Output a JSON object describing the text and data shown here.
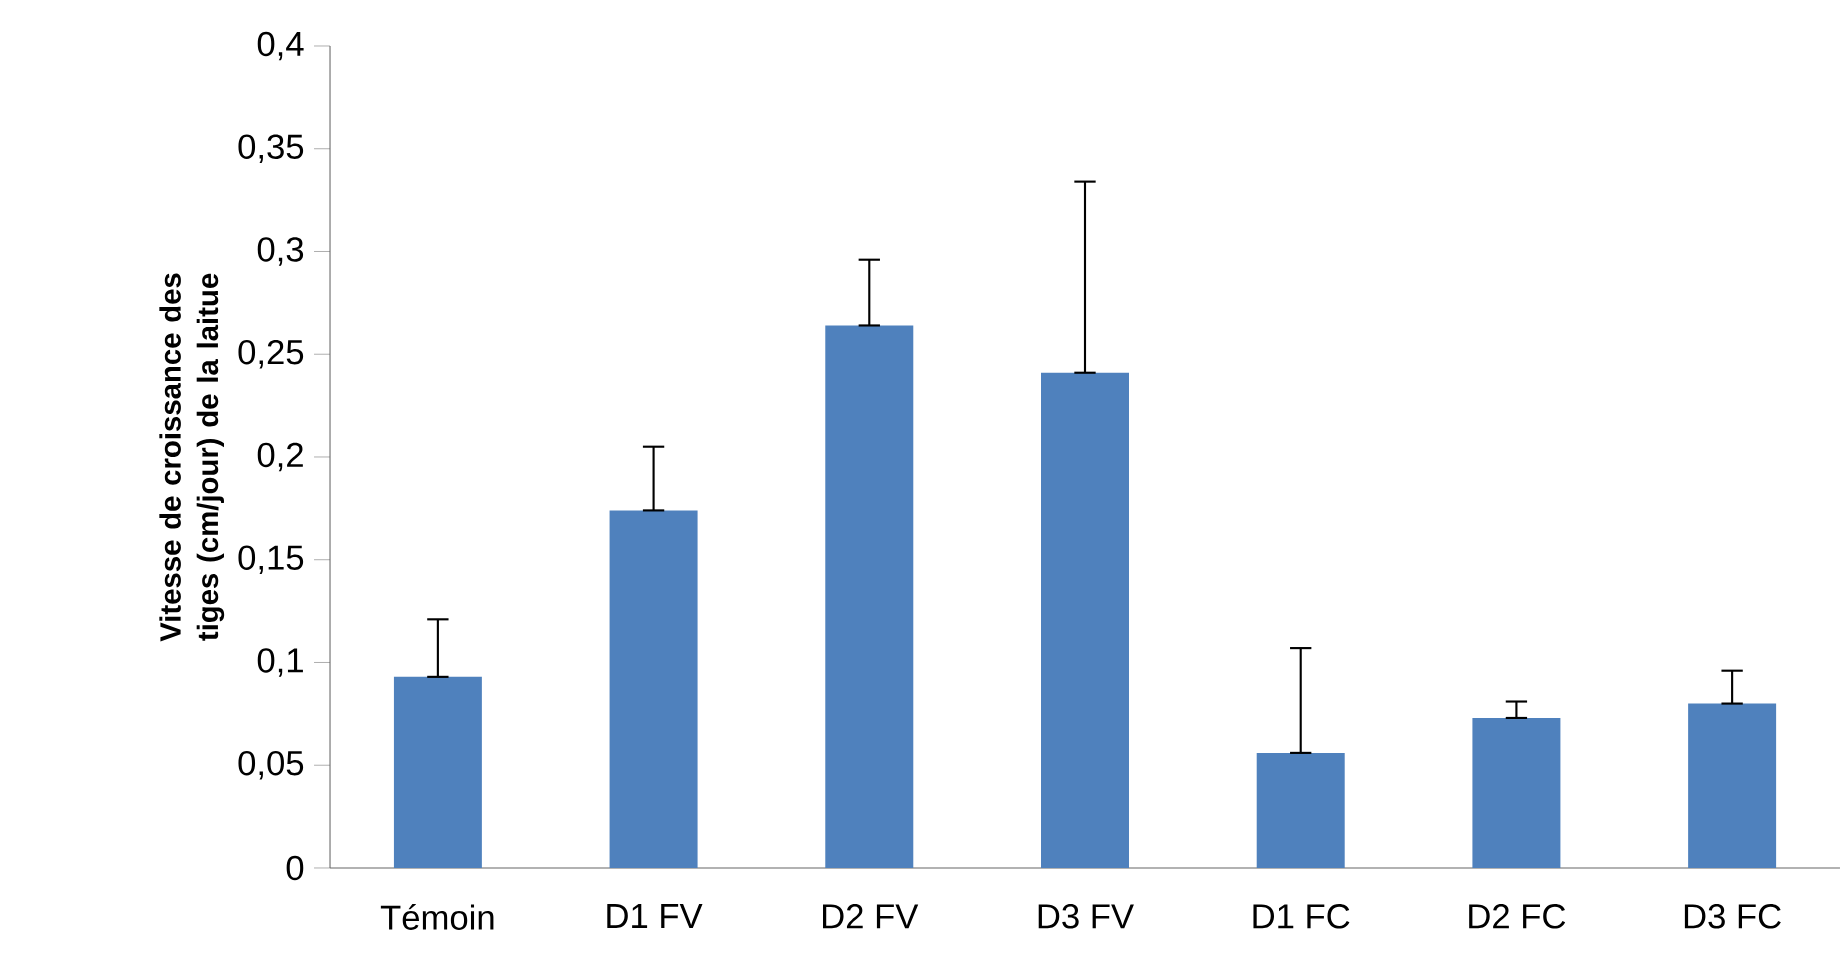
{
  "chart_data": {
    "type": "bar",
    "ylabel": "Vitesse de croissance  des tiges (cm/jour) de la laitue",
    "categories": [
      "Témoin",
      "D1 FV",
      "D2 FV",
      "D3 FV",
      "D1 FC",
      "D2 FC",
      "D3 FC"
    ],
    "values": [
      0.093,
      0.174,
      0.264,
      0.241,
      0.056,
      0.073,
      0.08
    ],
    "errors": [
      [
        0.093,
        0.121
      ],
      [
        0.174,
        0.205
      ],
      [
        0.264,
        0.296
      ],
      [
        0.241,
        0.334
      ],
      [
        0.056,
        0.107
      ],
      [
        0.073,
        0.081
      ],
      [
        0.08,
        0.096
      ]
    ],
    "color": "#4f81bd",
    "ylim": [
      0,
      0.4
    ],
    "yticks": [
      0,
      {
        "value": 0.05,
        "label": "0,05"
      },
      {
        "value": 0.1,
        "label": "0,1"
      },
      {
        "value": 0.15,
        "label": "0,15"
      },
      {
        "value": 0.2,
        "label": "0,2"
      },
      {
        "value": 0.25,
        "label": "0,25"
      },
      {
        "value": 0.3,
        "label": "0,3"
      },
      {
        "value": 0.35,
        "label": "0,35"
      },
      {
        "value": 0.4,
        "label": "0,4"
      }
    ],
    "grid": false
  }
}
